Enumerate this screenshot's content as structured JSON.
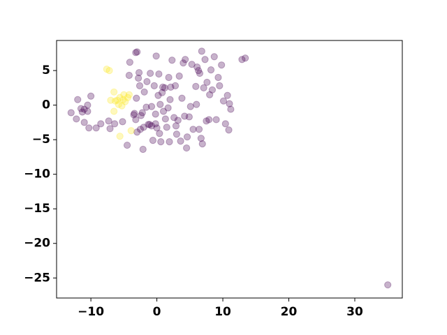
{
  "chart_data": {
    "type": "scatter",
    "xlim": [
      -15.2,
      37.2
    ],
    "ylim": [
      -27.9,
      9.35
    ],
    "xticks": [
      {
        "value": -10,
        "label": "−10"
      },
      0,
      10,
      20,
      30
    ],
    "yticks": [
      5,
      0,
      {
        "value": -5,
        "label": "−5"
      },
      {
        "value": -10,
        "label": "−10"
      },
      {
        "value": -15,
        "label": "−15"
      },
      {
        "value": -20,
        "label": "−20"
      },
      {
        "value": -25,
        "label": "−25"
      }
    ],
    "grid": false,
    "series": [
      {
        "color": "#440154",
        "x": [
          -13,
          -12.2,
          -12,
          -11.5,
          -11.3,
          -11,
          -10.5,
          -10.5,
          -11,
          -10.3,
          -10,
          -9.2,
          -8.5,
          -7.3,
          -7.1,
          -6.4,
          -4.5,
          -5.2,
          -4.2,
          -4.1,
          -3.4,
          -3.2,
          -3.0,
          -3.0,
          -3.2,
          -2.8,
          -2.7,
          -2.6,
          -2.2,
          -2.0,
          -2.1,
          -1.9,
          -1.6,
          -1.3,
          -1.0,
          -0.8,
          -0.6,
          -0.4,
          -0.2,
          0,
          -0.1,
          0.2,
          0.4,
          0.3,
          0.6,
          0.8,
          1,
          1.2,
          1.5,
          1.8,
          1.9,
          2,
          2.3,
          2.6,
          2.8,
          3,
          3.2,
          3.4,
          3.6,
          3.8,
          4.0,
          4.3,
          4.6,
          4.5,
          4.9,
          5.1,
          5.3,
          5.5,
          5.9,
          6.1,
          6.3,
          6.4,
          6.5,
          6.7,
          6.8,
          6.9,
          7.1,
          7.3,
          7.6,
          7.9,
          8.0,
          8.2,
          8.4,
          8.7,
          9.0,
          9.3,
          9.5,
          9.8,
          10.1,
          10.4,
          10.7,
          10.9,
          11.2,
          11.0,
          12.9,
          13.4,
          -3.1,
          -2.4,
          -1.1,
          0.5,
          1.7,
          2.9,
          4.2,
          6.0,
          -1.5,
          0.9,
          2.1,
          -0.8,
          -2.5,
          -0.2,
          1.3,
          -3.5,
          7.5,
          35
        ],
        "y": [
          -1.1,
          -2,
          0.8,
          -0.5,
          -1,
          -0.6,
          -0.9,
          0,
          -2.5,
          -3.3,
          1.3,
          -3.3,
          -2.7,
          -2.3,
          -3.4,
          -2.7,
          -5.8,
          -2.4,
          4.3,
          6.2,
          -1.2,
          -2.1,
          -3.9,
          7.7,
          7.6,
          3.9,
          4.7,
          2.8,
          -1.1,
          -3.2,
          -6.4,
          1.9,
          -0.3,
          -2.8,
          4.6,
          -0.2,
          -5.1,
          2.8,
          -1.3,
          -3.3,
          7.1,
          1.4,
          -4.1,
          4.5,
          -5.3,
          1.8,
          -0.9,
          2.5,
          -3.2,
          4.0,
          -5.3,
          0.8,
          6.5,
          -1.8,
          2.8,
          -4.2,
          -2.2,
          4.2,
          -5.2,
          1.0,
          6.1,
          6.6,
          -4.6,
          -6.2,
          -1.7,
          -0.2,
          5.9,
          -3.5,
          2.7,
          5.5,
          5.0,
          -3.5,
          4.6,
          -4.8,
          7.8,
          -5.6,
          2.5,
          6.6,
          3.3,
          -2.1,
          1.5,
          5.1,
          2.2,
          7.0,
          -2.1,
          4.0,
          2.8,
          5.8,
          0.6,
          -2.7,
          1.4,
          -3.6,
          -0.6,
          0.2,
          6.6,
          6.8,
          1.0,
          -1.5,
          -2.8,
          0.1,
          -0.4,
          -3.0,
          -1.6,
          0.1,
          3.4,
          2.6,
          2.6,
          -3.0,
          -3.5,
          -2.7,
          -2.0,
          -1.4,
          -2.3,
          -26
        ]
      },
      {
        "color": "#fde725",
        "x": [
          -7.6,
          -7.2,
          -6.5,
          -7.0,
          -6.0,
          -5.6,
          -5.0,
          -4.4,
          -6.5,
          -5.8,
          -5.3,
          -4.8,
          -5.6,
          -3.9,
          -6.3,
          -5.1,
          -4.2
        ],
        "y": [
          5.2,
          5.0,
          1.9,
          0.7,
          0.7,
          1.1,
          1.5,
          1.1,
          -0.9,
          0.1,
          -0.1,
          0.5,
          -4.5,
          -3.7,
          0.6,
          0.8,
          1.5
        ]
      }
    ]
  }
}
